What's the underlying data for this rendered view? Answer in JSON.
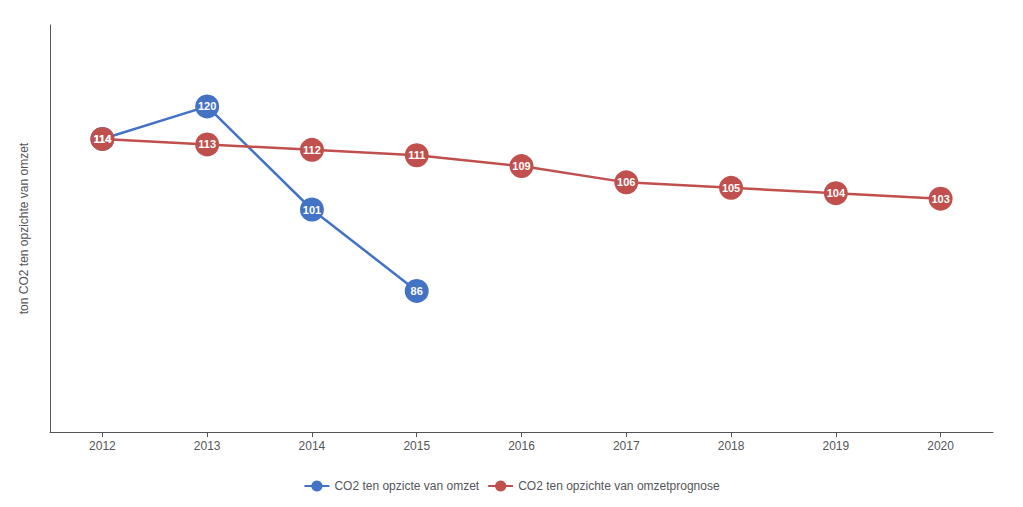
{
  "chart_data": {
    "type": "line",
    "x": [
      2012,
      2013,
      2014,
      2015,
      2016,
      2017,
      2018,
      2019,
      2020
    ],
    "series": [
      {
        "name": "CO2 ten opzicte van omzet",
        "color": "#4472C4",
        "values": [
          114,
          120,
          101,
          86,
          null,
          null,
          null,
          null,
          null
        ]
      },
      {
        "name": "CO2 ten opzichte van omzetprognose",
        "color": "#C0504D",
        "values": [
          114,
          113,
          112,
          111,
          109,
          106,
          105,
          104,
          103
        ]
      }
    ],
    "ylabel": "ton CO2 ten opzichte van omzet",
    "xlim": [
      2011.5,
      2020.5
    ],
    "xticks": [
      2012,
      2013,
      2014,
      2015,
      2016,
      2017,
      2018,
      2019,
      2020
    ],
    "ylim": [
      60,
      135
    ],
    "tick_labels": "x",
    "grid": false,
    "legend": "bottom",
    "data_labels": true,
    "marker": "circle"
  }
}
